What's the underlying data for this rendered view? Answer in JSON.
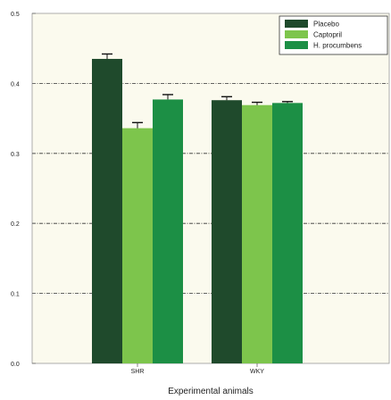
{
  "chart_data": {
    "type": "bar",
    "title": "",
    "xlabel": "Experimental animals",
    "ylabel": "",
    "categories": [
      "SHR",
      "WKY"
    ],
    "series": [
      {
        "name": "Placebo",
        "values": [
          0.435,
          0.376
        ],
        "errors": [
          0.007,
          0.005
        ],
        "color": "#1f4a2c"
      },
      {
        "name": "Captopril",
        "values": [
          0.336,
          0.369
        ],
        "errors": [
          0.008,
          0.004
        ],
        "color": "#7dc54c"
      },
      {
        "name": "H. procumbens",
        "values": [
          0.377,
          0.372
        ],
        "errors": [
          0.007,
          0.002
        ],
        "color": "#1c8f45"
      }
    ],
    "ylim": [
      0,
      0.5
    ],
    "yticks": [
      "0.0",
      "0.1",
      "0.2",
      "0.3",
      "0.4",
      "0.5"
    ],
    "grid": "dash-dot horizontal at 0.1, 0.2, 0.3, 0.4",
    "legend_position": "top-right",
    "plot_background": "#fbfaee"
  }
}
